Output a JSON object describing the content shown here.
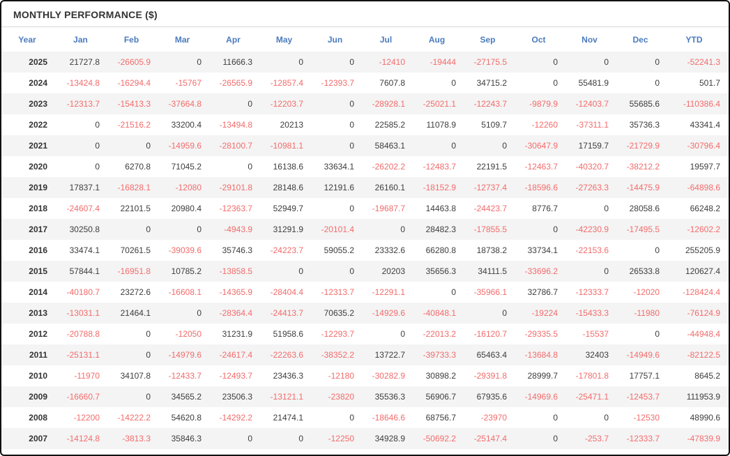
{
  "panel": {
    "title": "MONTHLY PERFORMANCE ($)"
  },
  "colors": {
    "negative_value": "#f36b6b",
    "positive_value": "#3d3d3d",
    "header_blue": "#4b7bbe",
    "row_stripe": "#f4f4f4",
    "frame_border": "#111111"
  },
  "chart_data": {
    "type": "table",
    "title": "MONTHLY PERFORMANCE ($)",
    "columns": [
      "Year",
      "Jan",
      "Feb",
      "Mar",
      "Apr",
      "May",
      "Jun",
      "Jul",
      "Aug",
      "Sep",
      "Oct",
      "Nov",
      "Dec",
      "YTD"
    ],
    "rows": [
      {
        "year": "2025",
        "values": [
          "21727.8",
          "-26605.9",
          "0",
          "11666.3",
          "0",
          "0",
          "-12410",
          "-19444",
          "-27175.5",
          "0",
          "0",
          "0",
          "-52241.3"
        ]
      },
      {
        "year": "2024",
        "values": [
          "-13424.8",
          "-16294.4",
          "-15767",
          "-26565.9",
          "-12857.4",
          "-12393.7",
          "7607.8",
          "0",
          "34715.2",
          "0",
          "55481.9",
          "0",
          "501.7"
        ]
      },
      {
        "year": "2023",
        "values": [
          "-12313.7",
          "-15413.3",
          "-37664.8",
          "0",
          "-12203.7",
          "0",
          "-28928.1",
          "-25021.1",
          "-12243.7",
          "-9879.9",
          "-12403.7",
          "55685.6",
          "-110386.4"
        ]
      },
      {
        "year": "2022",
        "values": [
          "0",
          "-21516.2",
          "33200.4",
          "-13494.8",
          "20213",
          "0",
          "22585.2",
          "11078.9",
          "5109.7",
          "-12260",
          "-37311.1",
          "35736.3",
          "43341.4"
        ]
      },
      {
        "year": "2021",
        "values": [
          "0",
          "0",
          "-14959.6",
          "-28100.7",
          "-10981.1",
          "0",
          "58463.1",
          "0",
          "0",
          "-30647.9",
          "17159.7",
          "-21729.9",
          "-30796.4"
        ]
      },
      {
        "year": "2020",
        "values": [
          "0",
          "6270.8",
          "71045.2",
          "0",
          "16138.6",
          "33634.1",
          "-26202.2",
          "-12483.7",
          "22191.5",
          "-12463.7",
          "-40320.7",
          "-38212.2",
          "19597.7"
        ]
      },
      {
        "year": "2019",
        "values": [
          "17837.1",
          "-16828.1",
          "-12080",
          "-29101.8",
          "28148.6",
          "12191.6",
          "26160.1",
          "-18152.9",
          "-12737.4",
          "-18596.6",
          "-27263.3",
          "-14475.9",
          "-64898.6"
        ]
      },
      {
        "year": "2018",
        "values": [
          "-24607.4",
          "22101.5",
          "20980.4",
          "-12363.7",
          "52949.7",
          "0",
          "-19687.7",
          "14463.8",
          "-24423.7",
          "8776.7",
          "0",
          "28058.6",
          "66248.2"
        ]
      },
      {
        "year": "2017",
        "values": [
          "30250.8",
          "0",
          "0",
          "-4943.9",
          "31291.9",
          "-20101.4",
          "0",
          "28482.3",
          "-17855.5",
          "0",
          "-42230.9",
          "-17495.5",
          "-12602.2"
        ]
      },
      {
        "year": "2016",
        "values": [
          "33474.1",
          "70261.5",
          "-39039.6",
          "35746.3",
          "-24223.7",
          "59055.2",
          "23332.6",
          "66280.8",
          "18738.2",
          "33734.1",
          "-22153.6",
          "0",
          "255205.9"
        ]
      },
      {
        "year": "2015",
        "values": [
          "57844.1",
          "-16951.8",
          "10785.2",
          "-13858.5",
          "0",
          "0",
          "20203",
          "35656.3",
          "34111.5",
          "-33696.2",
          "0",
          "26533.8",
          "120627.4"
        ]
      },
      {
        "year": "2014",
        "values": [
          "-40180.7",
          "23272.6",
          "-16608.1",
          "-14365.9",
          "-28404.4",
          "-12313.7",
          "-12291.1",
          "0",
          "-35966.1",
          "32786.7",
          "-12333.7",
          "-12020",
          "-128424.4"
        ]
      },
      {
        "year": "2013",
        "values": [
          "-13031.1",
          "21464.1",
          "0",
          "-28364.4",
          "-24413.7",
          "70635.2",
          "-14929.6",
          "-40848.1",
          "0",
          "-19224",
          "-15433.3",
          "-11980",
          "-76124.9"
        ]
      },
      {
        "year": "2012",
        "values": [
          "-20788.8",
          "0",
          "-12050",
          "31231.9",
          "51958.6",
          "-12293.7",
          "0",
          "-22013.2",
          "-16120.7",
          "-29335.5",
          "-15537",
          "0",
          "-44948.4"
        ]
      },
      {
        "year": "2011",
        "values": [
          "-25131.1",
          "0",
          "-14979.6",
          "-24617.4",
          "-22263.6",
          "-38352.2",
          "13722.7",
          "-39733.3",
          "65463.4",
          "-13684.8",
          "32403",
          "-14949.6",
          "-82122.5"
        ]
      },
      {
        "year": "2010",
        "values": [
          "-11970",
          "34107.8",
          "-12433.7",
          "-12493.7",
          "23436.3",
          "-12180",
          "-30282.9",
          "30898.2",
          "-29391.8",
          "28999.7",
          "-17801.8",
          "17757.1",
          "8645.2"
        ]
      },
      {
        "year": "2009",
        "values": [
          "-16660.7",
          "0",
          "34565.2",
          "23506.3",
          "-13121.1",
          "-23820",
          "35536.3",
          "56906.7",
          "67935.6",
          "-14969.6",
          "-25471.1",
          "-12453.7",
          "111953.9"
        ]
      },
      {
        "year": "2008",
        "values": [
          "-12200",
          "-14222.2",
          "54620.8",
          "-14292.2",
          "21474.1",
          "0",
          "-18646.6",
          "68756.7",
          "-23970",
          "0",
          "0",
          "-12530",
          "48990.6"
        ]
      },
      {
        "year": "2007",
        "values": [
          "-14124.8",
          "-3813.3",
          "35846.3",
          "0",
          "0",
          "-12250",
          "34928.9",
          "-50692.2",
          "-25147.4",
          "0",
          "-253.7",
          "-12333.7",
          "-47839.9"
        ]
      }
    ]
  }
}
